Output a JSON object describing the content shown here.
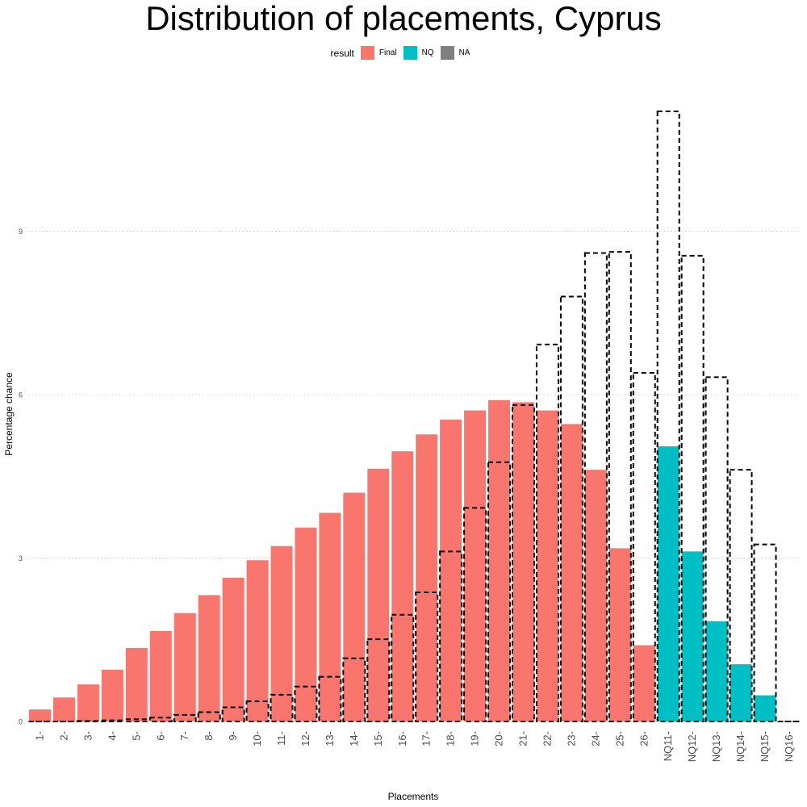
{
  "chart_data": {
    "type": "bar",
    "title": "Distribution of placements, Cyprus",
    "xlabel": "Placements",
    "ylabel": "Percentage chance",
    "ylim": [
      0,
      11.5
    ],
    "yticks": [
      0,
      3,
      6,
      9
    ],
    "grid": "horizontal dotted",
    "legend": {
      "title": "result",
      "placement": "top",
      "entries": [
        {
          "name": "Final",
          "color": "#F8766D"
        },
        {
          "name": "NQ",
          "color": "#00BFC4"
        },
        {
          "name": "NA",
          "color": "#808080"
        }
      ]
    },
    "categories": [
      "1-",
      "2-",
      "3-",
      "4-",
      "5-",
      "6-",
      "7-",
      "8-",
      "9-",
      "10-",
      "11-",
      "12-",
      "13-",
      "14-",
      "15-",
      "16-",
      "17-",
      "18-",
      "19-",
      "20-",
      "21-",
      "22-",
      "23-",
      "24-",
      "25-",
      "26-",
      "NQ11-",
      "NQ12-",
      "NQ13-",
      "NQ14-",
      "NQ15-",
      "NQ16-"
    ],
    "series": [
      {
        "kind": "filled",
        "values": [
          0.22,
          0.44,
          0.68,
          0.95,
          1.35,
          1.66,
          1.99,
          2.32,
          2.64,
          2.96,
          3.22,
          3.56,
          3.83,
          4.2,
          4.64,
          4.96,
          5.27,
          5.54,
          5.71,
          5.9,
          5.86,
          5.71,
          5.46,
          4.62,
          3.18,
          1.4,
          5.05,
          3.12,
          1.84,
          1.05,
          0.48,
          0
        ],
        "result": [
          "Final",
          "Final",
          "Final",
          "Final",
          "Final",
          "Final",
          "Final",
          "Final",
          "Final",
          "Final",
          "Final",
          "Final",
          "Final",
          "Final",
          "Final",
          "Final",
          "Final",
          "Final",
          "Final",
          "Final",
          "Final",
          "Final",
          "Final",
          "Final",
          "Final",
          "Final",
          "NQ",
          "NQ",
          "NQ",
          "NQ",
          "NQ",
          "NQ"
        ]
      },
      {
        "kind": "dashed-outline",
        "values": [
          0,
          0,
          0.01,
          0.02,
          0.04,
          0.07,
          0.12,
          0.17,
          0.26,
          0.37,
          0.49,
          0.64,
          0.82,
          1.16,
          1.51,
          1.96,
          2.37,
          3.12,
          3.92,
          4.76,
          5.81,
          6.92,
          7.8,
          8.6,
          8.62,
          6.4,
          11.2,
          8.55,
          6.32,
          4.62,
          3.25,
          0
        ]
      }
    ],
    "colors": {
      "final": "#F8766D",
      "nq": "#00BFC4",
      "na": "#808080",
      "grid": "#cccccc",
      "outline": "#000000"
    }
  }
}
